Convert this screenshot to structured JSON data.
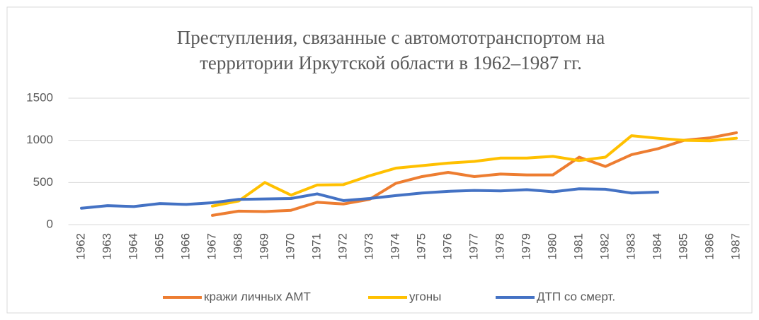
{
  "chart_data": {
    "type": "line",
    "title": [
      "Преступления, связанные с автомототранспортом на",
      "территории Иркутской области в 1962–1987 гг."
    ],
    "categories": [
      "1962",
      "1963",
      "1964",
      "1965",
      "1966",
      "1967",
      "1968",
      "1969",
      "1970",
      "1971",
      "1972",
      "1973",
      "1974",
      "1975",
      "1976",
      "1977",
      "1978",
      "1979",
      "1980",
      "1981",
      "1982",
      "1983",
      "1984",
      "1985",
      "1986",
      "1987"
    ],
    "series": [
      {
        "name": "кражи личных АМТ",
        "color": "#ed7d31",
        "values": [
          null,
          null,
          null,
          null,
          null,
          110,
          160,
          155,
          170,
          265,
          245,
          300,
          490,
          570,
          620,
          570,
          600,
          590,
          590,
          800,
          690,
          830,
          900,
          1000,
          1030,
          1090
        ]
      },
      {
        "name": "угоны",
        "color": "#ffc000",
        "values": [
          null,
          null,
          null,
          null,
          null,
          220,
          280,
          500,
          350,
          470,
          475,
          580,
          670,
          700,
          730,
          750,
          790,
          790,
          810,
          760,
          800,
          1055,
          1025,
          1000,
          995,
          1025
        ]
      },
      {
        "name": "ДТП со смерт.",
        "color": "#4472c4",
        "values": [
          195,
          225,
          215,
          250,
          240,
          260,
          300,
          305,
          310,
          365,
          285,
          310,
          345,
          375,
          395,
          405,
          400,
          415,
          390,
          425,
          420,
          375,
          385,
          null,
          null,
          null
        ]
      }
    ],
    "ylim": [
      0,
      1500
    ],
    "yticks": [
      0,
      500,
      1000,
      1500
    ],
    "grid": true,
    "legend": "bottom"
  }
}
